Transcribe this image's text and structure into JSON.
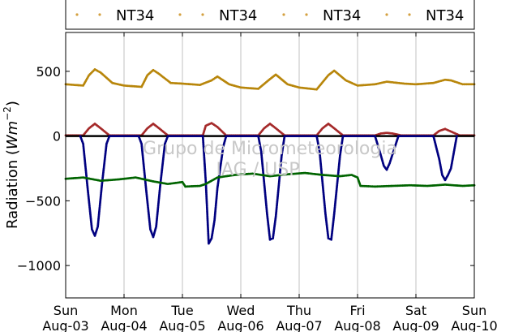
{
  "chart_data": {
    "type": "scatter",
    "title": "",
    "ylabel": "Radiation (Wm^-2)",
    "ylabel_plain": "Radiation (",
    "ylabel_unit_main": "Wm",
    "ylabel_unit_exp": "−2",
    "ylabel_close": ")",
    "xlim": [
      0,
      7
    ],
    "ylim": [
      -1250,
      800
    ],
    "yticks": [
      500,
      0,
      -500,
      -1000
    ],
    "ytick_labels": [
      "500",
      "0",
      "−500",
      "−1000"
    ],
    "xticks": [
      0,
      1,
      2,
      3,
      4,
      5,
      6,
      7
    ],
    "xtick_day_labels": [
      "Sun",
      "Mon",
      "Tue",
      "Wed",
      "Thu",
      "Fri",
      "Sat",
      "Sun"
    ],
    "xtick_date_labels": [
      "Aug-03",
      "Aug-04",
      "Aug-05",
      "Aug-06",
      "Aug-07",
      "Aug-08",
      "Aug-09",
      "Aug-10"
    ],
    "grid": "vertical",
    "legend": {
      "placement": "top",
      "entries": [
        "NT34",
        "NT34",
        "NT34",
        "NT34"
      ],
      "colors": [
        "#d4a040",
        "#d4a040",
        "#d4a040",
        "#d4a040"
      ]
    },
    "watermark": [
      "Grupo de Micrometeorologia",
      "IAG / USP"
    ],
    "series": [
      {
        "color": "#b8860b",
        "x": [
          0,
          0.3,
          0.4,
          0.5,
          0.6,
          0.8,
          1.0,
          1.3,
          1.4,
          1.5,
          1.6,
          1.8,
          2.0,
          2.3,
          2.5,
          2.6,
          2.8,
          3.0,
          3.3,
          3.5,
          3.6,
          3.8,
          4.0,
          4.3,
          4.5,
          4.6,
          4.8,
          5.0,
          5.3,
          5.5,
          5.6,
          5.8,
          6.0,
          6.3,
          6.5,
          6.6,
          6.8,
          7.0
        ],
        "y": [
          400,
          390,
          470,
          515,
          490,
          410,
          390,
          380,
          470,
          510,
          480,
          410,
          405,
          395,
          430,
          460,
          400,
          375,
          365,
          440,
          475,
          400,
          375,
          360,
          470,
          505,
          430,
          390,
          400,
          420,
          415,
          405,
          400,
          410,
          435,
          430,
          400,
          400
        ]
      },
      {
        "color": "#a52a2a",
        "x": [
          0,
          0.3,
          0.4,
          0.5,
          0.6,
          0.75,
          1.0,
          1.3,
          1.4,
          1.5,
          1.6,
          1.75,
          2.0,
          2.35,
          2.4,
          2.5,
          2.6,
          2.75,
          3.0,
          3.3,
          3.4,
          3.5,
          3.6,
          3.75,
          4.0,
          4.3,
          4.4,
          4.5,
          4.6,
          4.75,
          5.0,
          5.3,
          5.4,
          5.5,
          5.6,
          5.75,
          6.0,
          6.3,
          6.4,
          6.5,
          6.6,
          6.75,
          7.0
        ],
        "y": [
          5,
          5,
          60,
          95,
          60,
          5,
          5,
          5,
          60,
          95,
          60,
          5,
          5,
          5,
          80,
          100,
          70,
          5,
          5,
          5,
          60,
          95,
          60,
          5,
          5,
          5,
          60,
          95,
          60,
          5,
          5,
          5,
          20,
          25,
          20,
          5,
          5,
          5,
          40,
          55,
          35,
          5,
          5
        ]
      },
      {
        "color": "#000000",
        "x": [
          0,
          1,
          2,
          3,
          4,
          5,
          6,
          7
        ],
        "y": [
          0,
          0,
          0,
          0,
          0,
          0,
          0,
          0
        ]
      },
      {
        "color": "#000080",
        "x": [
          0.25,
          0.3,
          0.38,
          0.45,
          0.5,
          0.55,
          0.62,
          0.7,
          0.75,
          1.25,
          1.3,
          1.38,
          1.45,
          1.5,
          1.55,
          1.62,
          1.7,
          1.75,
          2.35,
          2.4,
          2.45,
          2.5,
          2.55,
          2.6,
          2.7,
          2.75,
          3.3,
          3.35,
          3.45,
          3.5,
          3.55,
          3.6,
          3.7,
          3.75,
          4.3,
          4.35,
          4.45,
          4.5,
          4.55,
          4.6,
          4.7,
          4.75,
          5.3,
          5.4,
          5.45,
          5.5,
          5.55,
          5.6,
          5.7,
          6.3,
          6.4,
          6.45,
          6.5,
          6.55,
          6.6,
          6.7
        ],
        "y": [
          0,
          -60,
          -420,
          -720,
          -770,
          -700,
          -380,
          -60,
          0,
          0,
          -60,
          -420,
          -720,
          -780,
          -700,
          -380,
          -60,
          0,
          0,
          -350,
          -830,
          -790,
          -650,
          -400,
          -80,
          0,
          0,
          -120,
          -600,
          -800,
          -790,
          -620,
          -150,
          0,
          0,
          -120,
          -600,
          -790,
          -800,
          -600,
          -150,
          0,
          0,
          -150,
          -230,
          -260,
          -210,
          -140,
          0,
          0,
          -180,
          -300,
          -340,
          -300,
          -250,
          0
        ]
      },
      {
        "color": "#006400",
        "x": [
          0,
          0.3,
          0.6,
          0.9,
          1.2,
          1.5,
          1.75,
          2.0,
          2.05,
          2.3,
          2.4,
          2.6,
          2.9,
          3.2,
          3.5,
          3.8,
          4.1,
          4.4,
          4.7,
          4.9,
          5.0,
          5.05,
          5.3,
          5.6,
          5.9,
          6.2,
          6.5,
          6.8,
          7.0
        ],
        "y": [
          -330,
          -320,
          -345,
          -335,
          -320,
          -350,
          -370,
          -355,
          -390,
          -385,
          -370,
          -320,
          -300,
          -290,
          -310,
          -295,
          -285,
          -300,
          -310,
          -300,
          -320,
          -385,
          -390,
          -385,
          -380,
          -385,
          -375,
          -385,
          -380
        ]
      }
    ]
  }
}
